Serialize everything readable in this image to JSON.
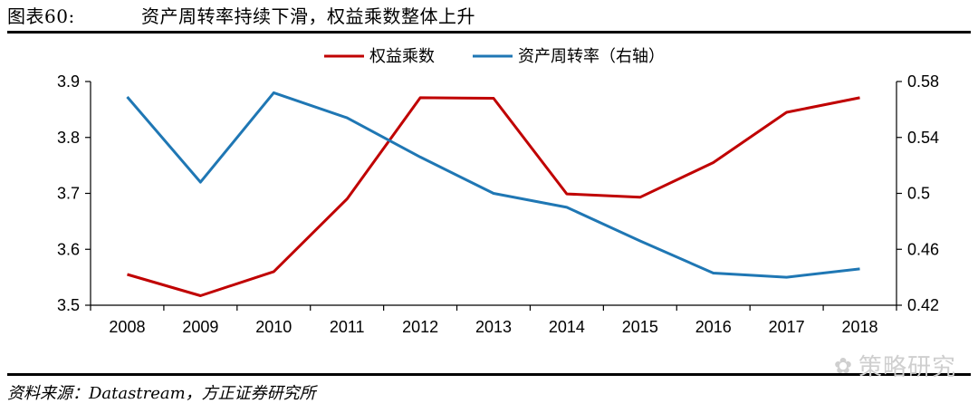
{
  "figure": {
    "number": "图表60:",
    "title": "资产周转率持续下滑，权益乘数整体上升",
    "source": "资料来源：Datastream，方正证券研究所",
    "watermark": "策略研究"
  },
  "chart_data": {
    "type": "line",
    "title": "资产周转率持续下滑，权益乘数整体上升",
    "categories": [
      "2008",
      "2009",
      "2010",
      "2011",
      "2012",
      "2013",
      "2014",
      "2015",
      "2016",
      "2017",
      "2018"
    ],
    "series": [
      {
        "name": "权益乘数",
        "axis": "left",
        "color": "#C00000",
        "values": [
          3.555,
          3.517,
          3.56,
          3.69,
          3.871,
          3.87,
          3.699,
          3.693,
          3.755,
          3.845,
          3.871
        ]
      },
      {
        "name": "资产周转率（右轴）",
        "axis": "right",
        "color": "#1F77B4",
        "values": [
          0.569,
          0.508,
          0.572,
          0.554,
          0.526,
          0.5,
          0.49,
          0.466,
          0.443,
          0.44,
          0.446
        ]
      }
    ],
    "yleft": {
      "lim": [
        3.5,
        3.9
      ],
      "ticks": [
        "3.5",
        "3.6",
        "3.7",
        "3.8",
        "3.9"
      ]
    },
    "yright": {
      "lim": [
        0.42,
        0.58
      ],
      "ticks": [
        "0.42",
        "0.46",
        "0.5",
        "0.54",
        "0.58"
      ]
    },
    "legend": "top-right",
    "grid": false
  }
}
